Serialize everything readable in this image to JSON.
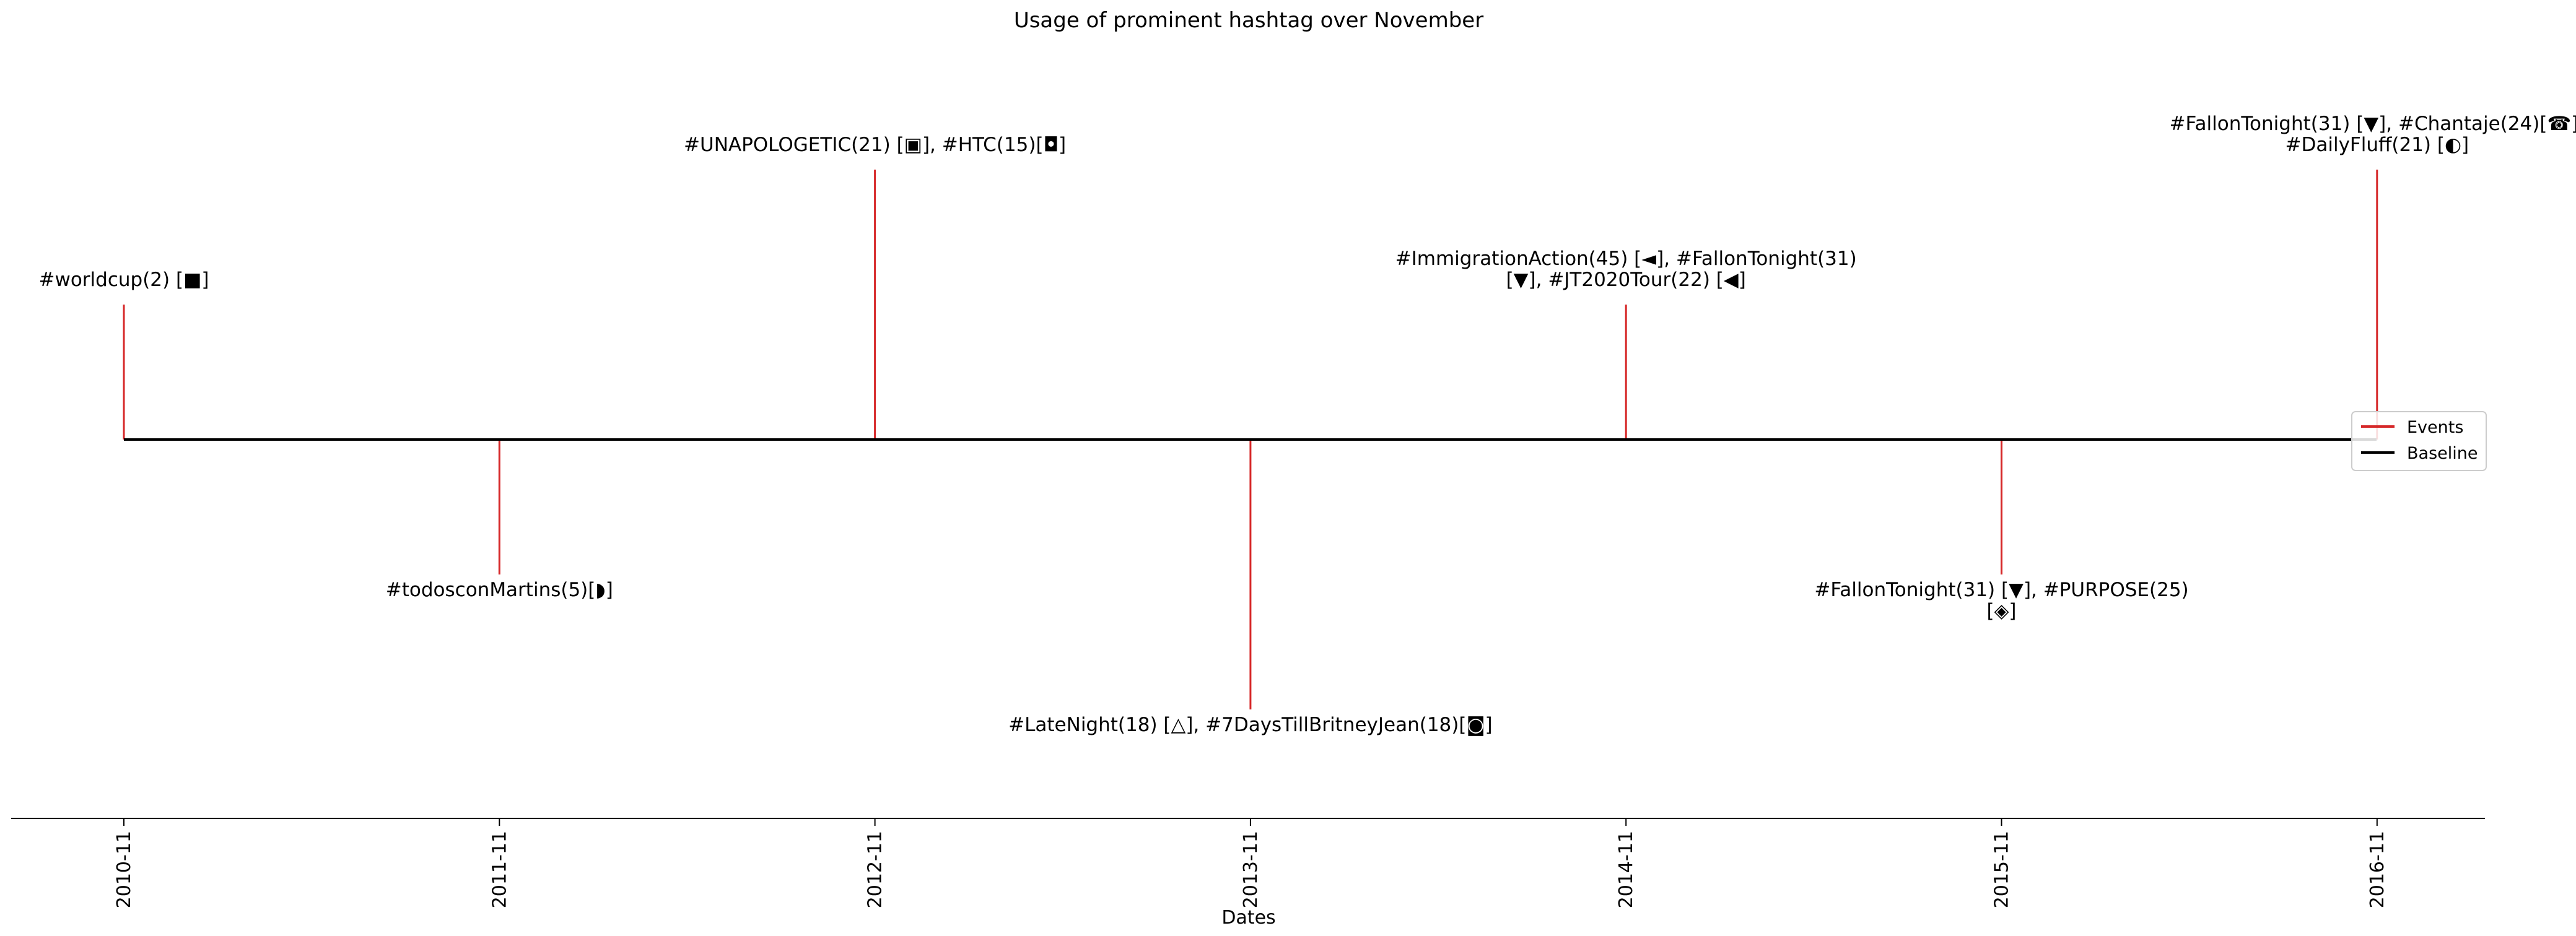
{
  "chart_data": {
    "type": "timeline",
    "title": "Usage of prominent hashtag over November",
    "xlabel": "Dates",
    "ylabel": "",
    "x_ticks": [
      "2010-11",
      "2011-11",
      "2012-11",
      "2013-11",
      "2014-11",
      "2015-11",
      "2016-11"
    ],
    "events": [
      {
        "date": "2010-11",
        "level": 1,
        "lines": [
          "#worldcup(2) [■]"
        ]
      },
      {
        "date": "2011-11",
        "level": -1,
        "lines": [
          "#todosconMartins(5)[◗]"
        ]
      },
      {
        "date": "2012-11",
        "level": 2,
        "lines": [
          "#UNAPOLOGETIC(21) [▣], #HTC(15)[◘]"
        ]
      },
      {
        "date": "2013-11",
        "level": -2,
        "lines": [
          "#LateNight(18) [△], #7DaysTillBritneyJean(18)[◙]"
        ]
      },
      {
        "date": "2014-11",
        "level": 1,
        "lines": [
          "#ImmigrationAction(45) [◄], #FallonTonight(31)",
          "[▼], #JT2020Tour(22) [◀]"
        ]
      },
      {
        "date": "2015-11",
        "level": -1,
        "lines": [
          "#FallonTonight(31) [▼], #PURPOSE(25)",
          "[◈]"
        ]
      },
      {
        "date": "2016-11",
        "level": 2,
        "lines": [
          "#FallonTonight(31) [▼], #Chantaje(24)[☎],",
          "#DailyFluff(21) [◐]"
        ]
      }
    ],
    "legend": {
      "position": "right",
      "entries": [
        {
          "label": "Events",
          "color": "#d62728"
        },
        {
          "label": "Baseline",
          "color": "#000000"
        }
      ]
    },
    "colors": {
      "events": "#d62728",
      "baseline": "#000000"
    }
  }
}
